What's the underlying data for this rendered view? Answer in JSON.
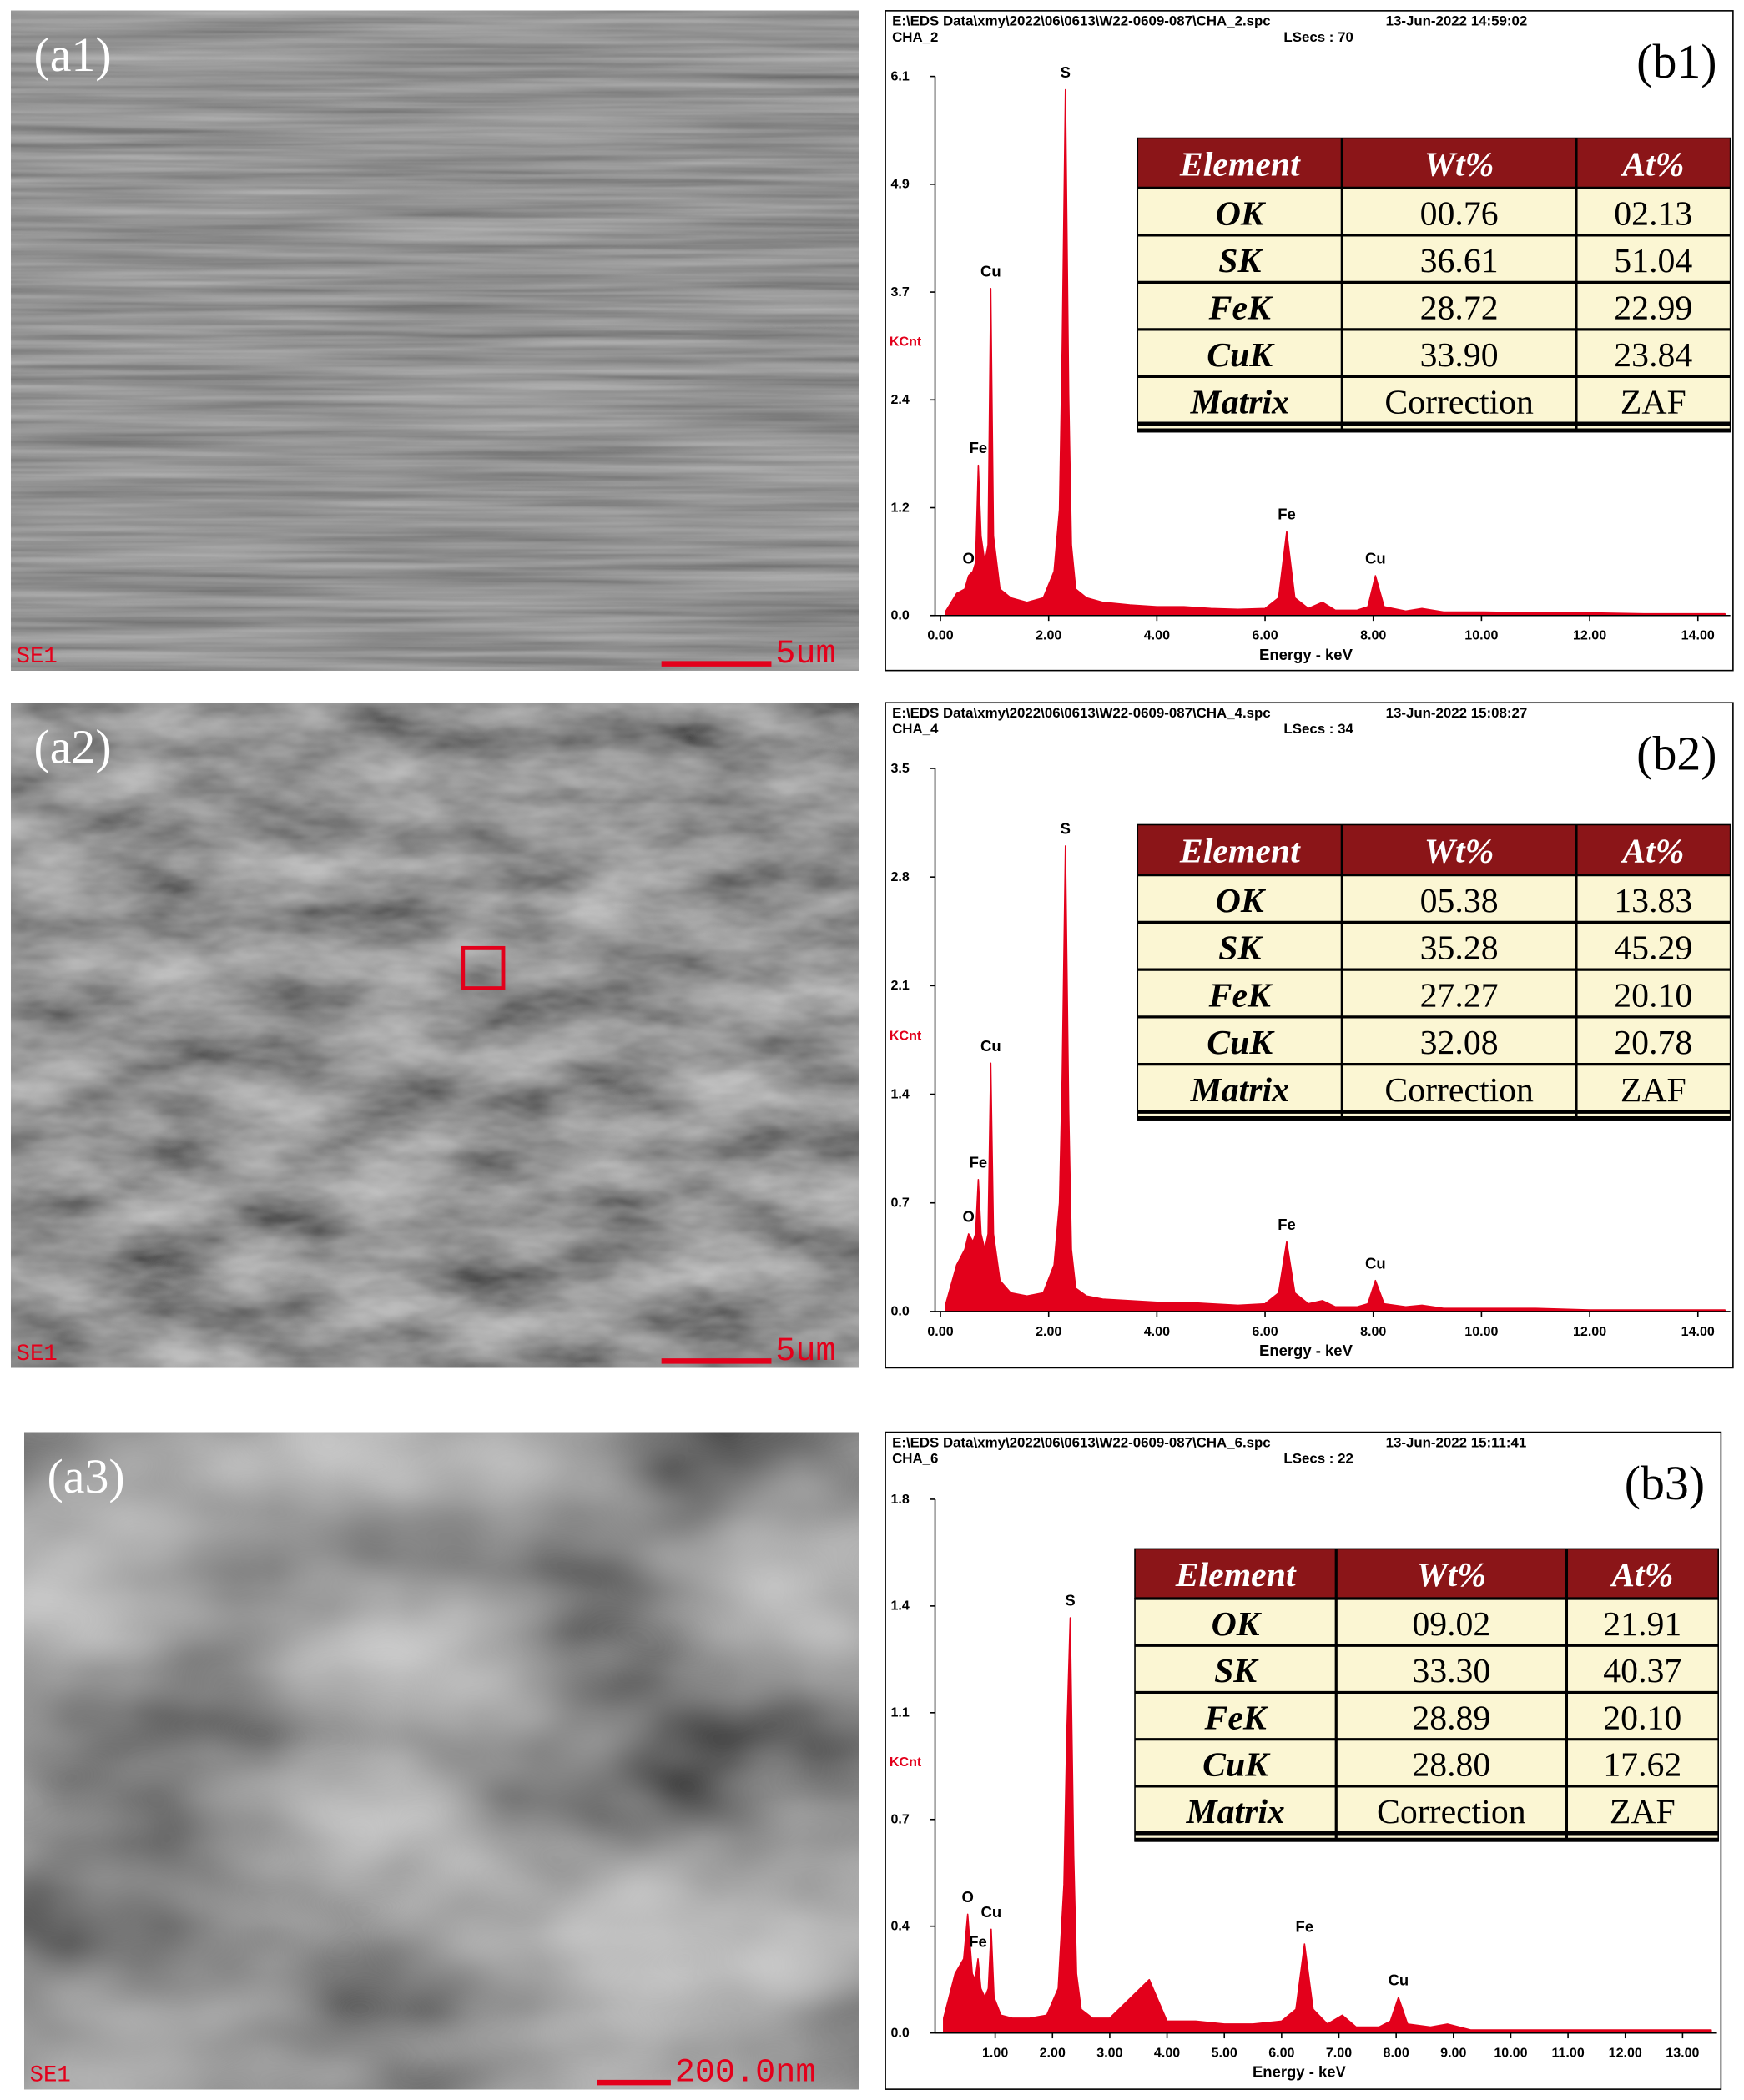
{
  "images": [
    {
      "panel_label": "(a1)",
      "detector": "SE1",
      "scale_bar": "5um"
    },
    {
      "panel_label": "(a2)",
      "detector": "SE1",
      "scale_bar": "5um"
    },
    {
      "panel_label": "(a3)",
      "detector": "SE1",
      "scale_bar": "200.0nm"
    }
  ],
  "chart_data": [
    {
      "type": "area",
      "panel_label": "(b1)",
      "file": "E:\\EDS Data\\xmy\\2022\\06\\0613\\W22-0609-087\\CHA_2.spc",
      "timestamp": "13-Jun-2022 14:59:02",
      "spectrum": "CHA_2",
      "live_time": "LSecs : 70",
      "xlabel": "Energy - keV",
      "ylabel": "KCnt",
      "color": "#e3001b",
      "xlim": [
        -0.1,
        14.6
      ],
      "ylim": [
        0,
        6.1
      ],
      "xticks": [
        {
          "value": 0,
          "label": "0.00"
        },
        {
          "value": 2,
          "label": "2.00"
        },
        {
          "value": 4,
          "label": "4.00"
        },
        {
          "value": 6,
          "label": "6.00"
        },
        {
          "value": 8,
          "label": "8.00"
        },
        {
          "value": 10,
          "label": "10.00"
        },
        {
          "value": 12,
          "label": "12.00"
        },
        {
          "value": 14,
          "label": "14.00"
        }
      ],
      "yticks": [
        {
          "value": 0,
          "label": "0.0"
        },
        {
          "value": 1.22,
          "label": "1.2"
        },
        {
          "value": 2.44,
          "label": "2.4"
        },
        {
          "value": 3.66,
          "label": "3.7"
        },
        {
          "value": 4.88,
          "label": "4.9"
        },
        6.1
      ],
      "x": [
        0.1,
        0.3,
        0.45,
        0.52,
        0.6,
        0.65,
        0.7,
        0.75,
        0.82,
        0.88,
        0.93,
        0.98,
        1.1,
        1.3,
        1.6,
        1.9,
        2.1,
        2.2,
        2.25,
        2.31,
        2.37,
        2.42,
        2.5,
        2.7,
        3.0,
        3.5,
        4.0,
        4.5,
        5.0,
        5.5,
        6.0,
        6.25,
        6.4,
        6.55,
        6.8,
        7.06,
        7.3,
        7.7,
        7.9,
        8.04,
        8.2,
        8.6,
        8.9,
        9.3,
        10,
        11,
        12,
        13,
        14,
        14.5
      ],
      "values": [
        0.05,
        0.25,
        0.3,
        0.45,
        0.5,
        0.6,
        1.7,
        0.9,
        0.6,
        0.8,
        3.7,
        0.9,
        0.3,
        0.2,
        0.15,
        0.2,
        0.5,
        1.2,
        3.0,
        5.95,
        2.5,
        0.8,
        0.3,
        0.2,
        0.15,
        0.12,
        0.1,
        0.1,
        0.08,
        0.07,
        0.08,
        0.2,
        0.95,
        0.2,
        0.08,
        0.15,
        0.06,
        0.06,
        0.1,
        0.45,
        0.1,
        0.05,
        0.08,
        0.04,
        0.04,
        0.03,
        0.03,
        0.02,
        0.02,
        0.02
      ],
      "annotations": [
        {
          "text": "O",
          "x": 0.52,
          "y": 0.45
        },
        {
          "text": "Fe",
          "x": 0.7,
          "y": 1.7
        },
        {
          "text": "Cu",
          "x": 0.93,
          "y": 3.7
        },
        {
          "text": "S",
          "x": 2.31,
          "y": 5.95
        },
        {
          "text": "Fe",
          "x": 6.4,
          "y": 0.95
        },
        {
          "text": "Cu",
          "x": 8.04,
          "y": 0.45
        }
      ],
      "table": {
        "columns": [
          "Element",
          "Wt%",
          "At%"
        ],
        "rows": [
          [
            "OK",
            "00.76",
            "02.13"
          ],
          [
            "SK",
            "36.61",
            "51.04"
          ],
          [
            "FeK",
            "28.72",
            "22.99"
          ],
          [
            "CuK",
            "33.90",
            "23.84"
          ],
          [
            "Matrix",
            "Correction",
            "ZAF"
          ]
        ]
      }
    },
    {
      "type": "area",
      "panel_label": "(b2)",
      "file": "E:\\EDS Data\\xmy\\2022\\06\\0613\\W22-0609-087\\CHA_4.spc",
      "timestamp": "13-Jun-2022 15:08:27",
      "spectrum": "CHA_4",
      "live_time": "LSecs : 34",
      "xlabel": "Energy - keV",
      "ylabel": "KCnt",
      "color": "#e3001b",
      "xlim": [
        -0.1,
        14.6
      ],
      "ylim": [
        0,
        3.5
      ],
      "xticks": [
        {
          "value": 0,
          "label": "0.00"
        },
        {
          "value": 2,
          "label": "2.00"
        },
        {
          "value": 4,
          "label": "4.00"
        },
        {
          "value": 6,
          "label": "6.00"
        },
        {
          "value": 8,
          "label": "8.00"
        },
        {
          "value": 10,
          "label": "10.00"
        },
        {
          "value": 12,
          "label": "12.00"
        },
        {
          "value": 14,
          "label": "14.00"
        }
      ],
      "yticks": [
        {
          "value": 0,
          "label": "0.0"
        },
        0.7,
        1.4,
        2.1,
        2.8,
        3.5
      ],
      "x": [
        0.1,
        0.3,
        0.45,
        0.52,
        0.6,
        0.65,
        0.7,
        0.75,
        0.82,
        0.88,
        0.93,
        0.98,
        1.1,
        1.3,
        1.6,
        1.9,
        2.1,
        2.2,
        2.25,
        2.31,
        2.37,
        2.42,
        2.5,
        2.7,
        3.0,
        3.5,
        4.0,
        4.5,
        5.0,
        5.5,
        6.0,
        6.25,
        6.4,
        6.55,
        6.8,
        7.06,
        7.3,
        7.7,
        7.9,
        8.04,
        8.2,
        8.6,
        8.9,
        9.3,
        10,
        11,
        12,
        13,
        14,
        14.5
      ],
      "values": [
        0.05,
        0.3,
        0.4,
        0.5,
        0.45,
        0.5,
        0.85,
        0.5,
        0.4,
        0.5,
        1.6,
        0.5,
        0.2,
        0.12,
        0.1,
        0.12,
        0.3,
        0.7,
        1.5,
        3.0,
        1.3,
        0.4,
        0.15,
        0.1,
        0.08,
        0.07,
        0.06,
        0.06,
        0.05,
        0.04,
        0.05,
        0.12,
        0.45,
        0.12,
        0.05,
        0.07,
        0.03,
        0.03,
        0.05,
        0.2,
        0.05,
        0.03,
        0.04,
        0.02,
        0.02,
        0.02,
        0.01,
        0.01,
        0.01,
        0.01
      ],
      "annotations": [
        {
          "text": "O",
          "x": 0.52,
          "y": 0.5
        },
        {
          "text": "Fe",
          "x": 0.7,
          "y": 0.85
        },
        {
          "text": "Cu",
          "x": 0.93,
          "y": 1.6
        },
        {
          "text": "S",
          "x": 2.31,
          "y": 3.0
        },
        {
          "text": "Fe",
          "x": 6.4,
          "y": 0.45
        },
        {
          "text": "Cu",
          "x": 8.04,
          "y": 0.2
        }
      ],
      "table": {
        "columns": [
          "Element",
          "Wt%",
          "At%"
        ],
        "rows": [
          [
            "OK",
            "05.38",
            "13.83"
          ],
          [
            "SK",
            "35.28",
            "45.29"
          ],
          [
            "FeK",
            "27.27",
            "20.10"
          ],
          [
            "CuK",
            "32.08",
            "20.78"
          ],
          [
            "Matrix",
            "Correction",
            "ZAF"
          ]
        ]
      }
    },
    {
      "type": "area",
      "panel_label": "(b3)",
      "file": "E:\\EDS Data\\xmy\\2022\\06\\0613\\W22-0609-087\\CHA_6.spc",
      "timestamp": "13-Jun-2022 15:11:41",
      "spectrum": "CHA_6",
      "live_time": "LSecs : 22",
      "xlabel": "Energy - keV",
      "ylabel": "KCnt",
      "color": "#e3001b",
      "xlim": [
        -0.05,
        13.6
      ],
      "ylim": [
        0,
        1.8
      ],
      "xticks": [
        {
          "value": 1,
          "label": "1.00"
        },
        {
          "value": 2,
          "label": "2.00"
        },
        {
          "value": 3,
          "label": "3.00"
        },
        {
          "value": 4,
          "label": "4.00"
        },
        {
          "value": 5,
          "label": "5.00"
        },
        {
          "value": 6,
          "label": "6.00"
        },
        {
          "value": 7,
          "label": "7.00"
        },
        {
          "value": 8,
          "label": "8.00"
        },
        {
          "value": 9,
          "label": "9.00"
        },
        {
          "value": 10,
          "label": "10.00"
        },
        {
          "value": 11,
          "label": "11.00"
        },
        {
          "value": 12,
          "label": "12.00"
        },
        {
          "value": 13,
          "label": "13.00"
        }
      ],
      "yticks": [
        {
          "value": 0,
          "label": "0.0"
        },
        {
          "value": 0.36,
          "label": "0.4"
        },
        {
          "value": 0.72,
          "label": "0.7"
        },
        {
          "value": 1.08,
          "label": "1.1"
        },
        {
          "value": 1.44,
          "label": "1.4"
        },
        1.8
      ],
      "x": [
        0.1,
        0.3,
        0.45,
        0.52,
        0.6,
        0.65,
        0.7,
        0.75,
        0.82,
        0.88,
        0.93,
        0.98,
        1.1,
        1.3,
        1.6,
        1.9,
        2.1,
        2.2,
        2.25,
        2.31,
        2.37,
        2.42,
        2.5,
        2.7,
        3.0,
        3.69,
        4.0,
        4.5,
        5.0,
        5.5,
        6.0,
        6.25,
        6.4,
        6.55,
        6.8,
        7.06,
        7.3,
        7.7,
        7.9,
        8.04,
        8.2,
        8.6,
        8.9,
        9.3,
        10,
        11,
        12,
        13,
        13.3,
        13.5
      ],
      "values": [
        0.05,
        0.2,
        0.25,
        0.4,
        0.2,
        0.18,
        0.25,
        0.15,
        0.12,
        0.15,
        0.35,
        0.12,
        0.06,
        0.05,
        0.05,
        0.06,
        0.15,
        0.5,
        1.0,
        1.4,
        0.6,
        0.2,
        0.08,
        0.05,
        0.05,
        0.18,
        0.04,
        0.04,
        0.03,
        0.03,
        0.04,
        0.08,
        0.3,
        0.08,
        0.03,
        0.06,
        0.02,
        0.02,
        0.04,
        0.12,
        0.03,
        0.02,
        0.03,
        0.01,
        0.01,
        0.01,
        0.01,
        0.01,
        0.01,
        0.01
      ],
      "annotations": [
        {
          "text": "O",
          "x": 0.52,
          "y": 0.4
        },
        {
          "text": "Fe",
          "x": 0.7,
          "y": 0.25
        },
        {
          "text": "Cu",
          "x": 0.93,
          "y": 0.35
        },
        {
          "text": "S",
          "x": 2.31,
          "y": 1.4
        },
        {
          "text": "Fe",
          "x": 6.4,
          "y": 0.3
        },
        {
          "text": "Cu",
          "x": 8.04,
          "y": 0.12
        }
      ],
      "table": {
        "columns": [
          "Element",
          "Wt%",
          "At%"
        ],
        "rows": [
          [
            "OK",
            "09.02",
            "21.91"
          ],
          [
            "SK",
            "33.30",
            "40.37"
          ],
          [
            "FeK",
            "28.89",
            "20.10"
          ],
          [
            "CuK",
            "28.80",
            "17.62"
          ],
          [
            "Matrix",
            "Correction",
            "ZAF"
          ]
        ]
      }
    }
  ]
}
